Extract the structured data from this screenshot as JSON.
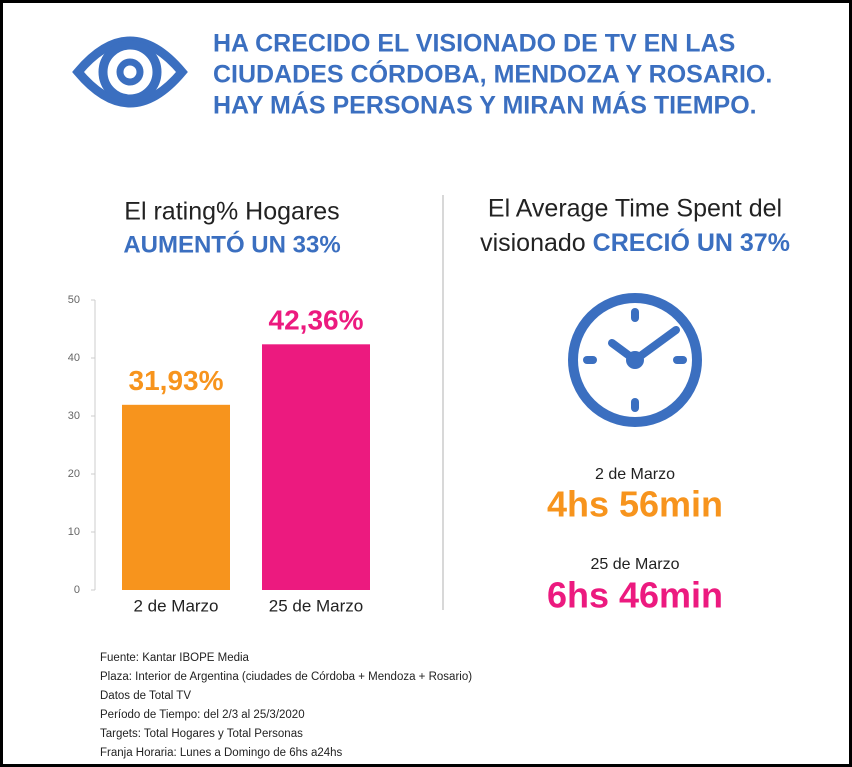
{
  "header": {
    "title": [
      "HA CRECIDO EL VISIONADO DE TV EN LAS",
      "CIUDADES CÓRDOBA, MENDOZA Y ROSARIO.",
      "HAY MÁS PERSONAS Y MIRAN MÁS TIEMPO."
    ]
  },
  "chart_data": {
    "type": "bar",
    "title": "El rating% Hogares",
    "subtitle": "AUMENTÓ UN 33%",
    "categories": [
      "2 de Marzo",
      "25 de Marzo"
    ],
    "values": [
      31.93,
      42.36
    ],
    "value_labels": [
      "31,93%",
      "42,36%"
    ],
    "colors": [
      "#f7941d",
      "#ec1a7f"
    ],
    "ylim": [
      0,
      50
    ],
    "yticks": [
      0,
      10,
      20,
      30,
      40,
      50
    ]
  },
  "right_panel": {
    "heading_line1": "El Average Time Spent del",
    "heading_line2": "visionado",
    "heading_highlight": "CRECIÓ UN 37%",
    "items": [
      {
        "date": "2 de Marzo",
        "time": "4hs 56min"
      },
      {
        "date": "25 de Marzo",
        "time": "6hs 46min"
      }
    ]
  },
  "footer": {
    "lines": [
      "Fuente: Kantar IBOPE Media",
      "Plaza: Interior de Argentina (ciudades de Córdoba + Mendoza + Rosario)",
      "Datos de Total TV",
      "Período de Tiempo: del 2/3 al 25/3/2020",
      "Targets: Total Hogares y Total Personas",
      "Franja Horaria: Lunes a Domingo de 6hs a24hs"
    ]
  }
}
